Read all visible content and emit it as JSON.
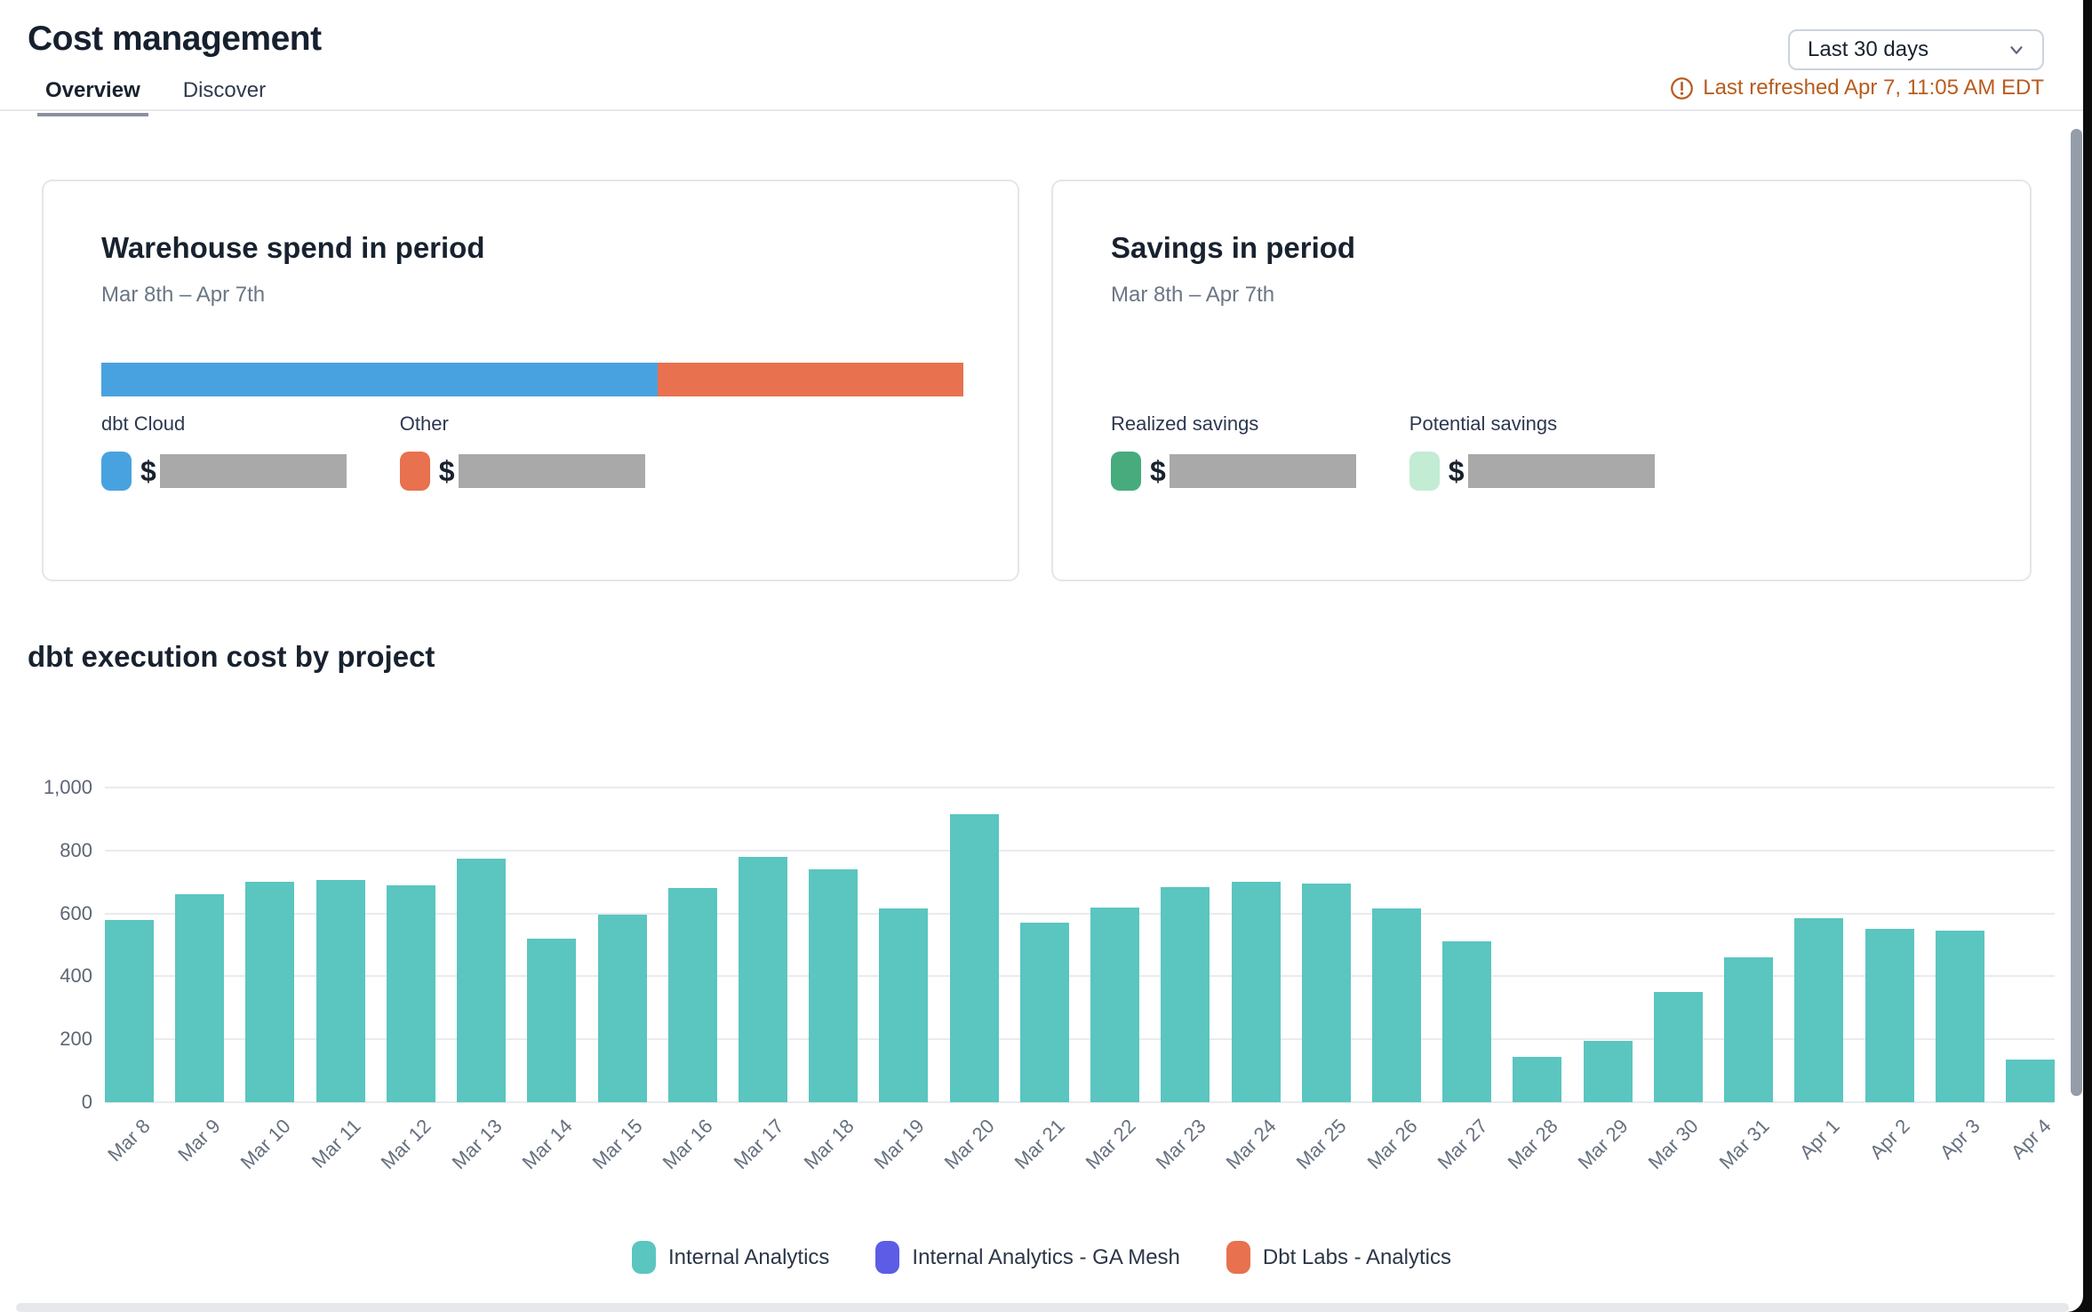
{
  "header": {
    "title": "Cost management",
    "tabs": [
      {
        "label": "Overview",
        "active": true
      },
      {
        "label": "Discover",
        "active": false
      }
    ],
    "date_range": {
      "selected": "Last 30 days",
      "icon": "chevron-down-icon"
    },
    "last_refreshed": {
      "text": "Last refreshed Apr 7, 11:05 AM EDT",
      "icon": "alert-circle-icon",
      "color": "#b85c1e"
    }
  },
  "cards": {
    "warehouse_spend": {
      "title": "Warehouse spend in period",
      "subtitle": "Mar 8th – Apr 7th",
      "stacked_bar": [
        {
          "name": "dbt Cloud",
          "color": "#49a2e0",
          "percent": 64.5
        },
        {
          "name": "Other",
          "color": "#e8714f",
          "percent": 35.5
        }
      ],
      "metrics": [
        {
          "label": "dbt Cloud",
          "color": "#49a2e0",
          "currency": "$",
          "value_redacted": true
        },
        {
          "label": "Other",
          "color": "#e8714f",
          "currency": "$",
          "value_redacted": true
        }
      ]
    },
    "savings": {
      "title": "Savings in period",
      "subtitle": "Mar 8th – Apr 7th",
      "metrics": [
        {
          "label": "Realized savings",
          "color": "#47ab7d",
          "currency": "$",
          "value_redacted": true
        },
        {
          "label": "Potential savings",
          "color": "#c2ecd4",
          "currency": "$",
          "value_redacted": true
        }
      ]
    }
  },
  "chart_section": {
    "title": "dbt execution cost by project"
  },
  "chart_data": {
    "type": "bar",
    "title": "dbt execution cost by project",
    "categories": [
      "Mar 8",
      "Mar 9",
      "Mar 10",
      "Mar 11",
      "Mar 12",
      "Mar 13",
      "Mar 14",
      "Mar 15",
      "Mar 16",
      "Mar 17",
      "Mar 18",
      "Mar 19",
      "Mar 20",
      "Mar 21",
      "Mar 22",
      "Mar 23",
      "Mar 24",
      "Mar 25",
      "Mar 26",
      "Mar 27",
      "Mar 28",
      "Mar 29",
      "Mar 30",
      "Mar 31",
      "Apr 1",
      "Apr 2",
      "Apr 3",
      "Apr 4"
    ],
    "series": [
      {
        "name": "Internal Analytics",
        "color": "#5bc5c0",
        "values": [
          580,
          660,
          700,
          705,
          690,
          775,
          520,
          595,
          680,
          780,
          740,
          615,
          915,
          570,
          620,
          685,
          700,
          695,
          615,
          510,
          145,
          195,
          350,
          460,
          585,
          550,
          545,
          135
        ]
      },
      {
        "name": "Internal Analytics - GA Mesh",
        "color": "#5c5ce6",
        "values": []
      },
      {
        "name": "Dbt Labs - Analytics",
        "color": "#e8714f",
        "values": []
      }
    ],
    "legend": [
      {
        "label": "Internal Analytics",
        "color": "#5bc5c0"
      },
      {
        "label": "Internal Analytics - GA Mesh",
        "color": "#5c5ce6"
      },
      {
        "label": "Dbt Labs - Analytics",
        "color": "#e8714f"
      }
    ],
    "xlabel": "",
    "ylabel": "",
    "ylim": [
      0,
      1000
    ],
    "yticks": [
      {
        "label": "1,000",
        "value": 1000
      },
      {
        "label": "800",
        "value": 800
      },
      {
        "label": "600",
        "value": 600
      },
      {
        "label": "400",
        "value": 400
      },
      {
        "label": "200",
        "value": 200
      },
      {
        "label": "0",
        "value": 0
      }
    ],
    "grid": true,
    "legend_position": "bottom"
  }
}
